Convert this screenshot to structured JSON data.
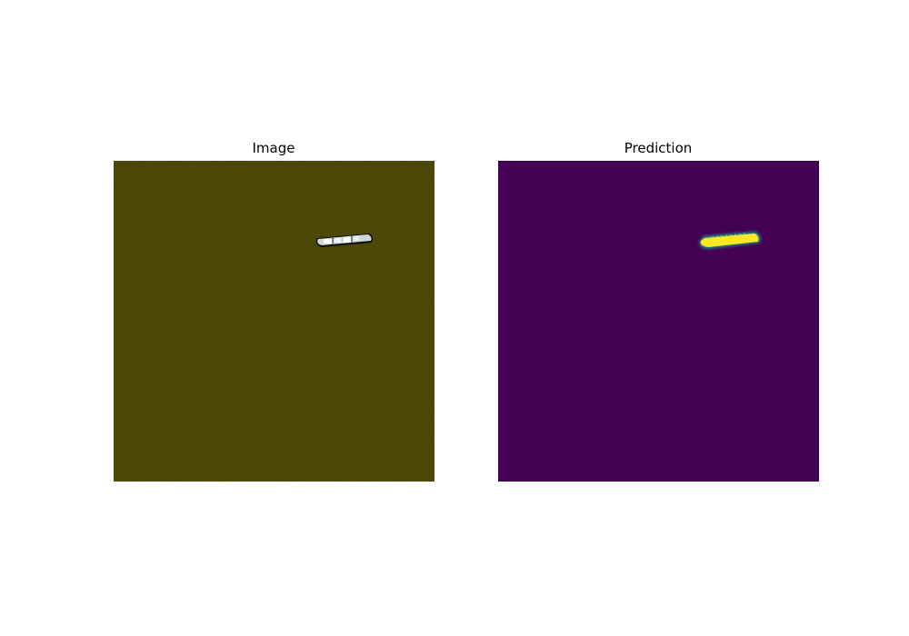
{
  "figure": {
    "panels": [
      {
        "title": "Image",
        "content": "satellite-ocean-ship",
        "colors": {
          "water": "#453f04",
          "water_dark": "#3a3503",
          "ship_hull": "#e8eef0",
          "ship_shadow": "#0d0d0d"
        }
      },
      {
        "title": "Prediction",
        "content": "segmentation-mask-viridis",
        "colors": {
          "background": "#440154",
          "mask_core": "#fde725",
          "mask_edge": "#21918c"
        }
      }
    ]
  }
}
